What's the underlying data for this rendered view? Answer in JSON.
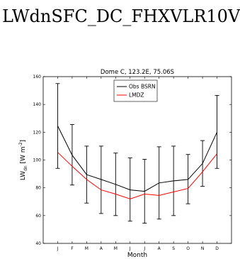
{
  "page": {
    "heading": "LWdnSFC_DC_FHXVLR10V"
  },
  "chart_data": {
    "type": "line",
    "title": "Dome C, 123.2E, 75.06S",
    "xlabel": "Month",
    "ylabel_main": "LW",
    "ylabel_sub": "dn",
    "ylabel_unit": "[W m",
    "ylabel_unit_sup": "-2",
    "ylabel_unit_close": "]",
    "categories": [
      "J",
      "F",
      "M",
      "A",
      "M",
      "J",
      "J",
      "A",
      "S",
      "O",
      "N",
      "D"
    ],
    "ylim": [
      40,
      160
    ],
    "yticks": [
      40,
      60,
      80,
      100,
      120,
      140,
      160
    ],
    "grid": false,
    "legend_position": "top-center",
    "series": [
      {
        "name": "Obs BSRN",
        "color": "#000000",
        "values": [
          124.5,
          103.5,
          89.5,
          86,
          82.5,
          78.5,
          77.5,
          83.5,
          85,
          86,
          97.5,
          120
        ],
        "error_low": [
          94,
          82,
          69,
          61.5,
          60,
          56,
          54.5,
          57.5,
          60,
          68.5,
          81,
          94
        ],
        "error_high": [
          155,
          125.5,
          110,
          110,
          105,
          101.5,
          100.5,
          109.5,
          110,
          104,
          114,
          146.5
        ]
      },
      {
        "name": "LMDZ",
        "color": "#ff0000",
        "values": [
          105.5,
          95.5,
          86,
          78.5,
          75.5,
          72,
          75.5,
          74.5,
          77,
          79.5,
          91.5,
          104.5
        ]
      }
    ]
  }
}
